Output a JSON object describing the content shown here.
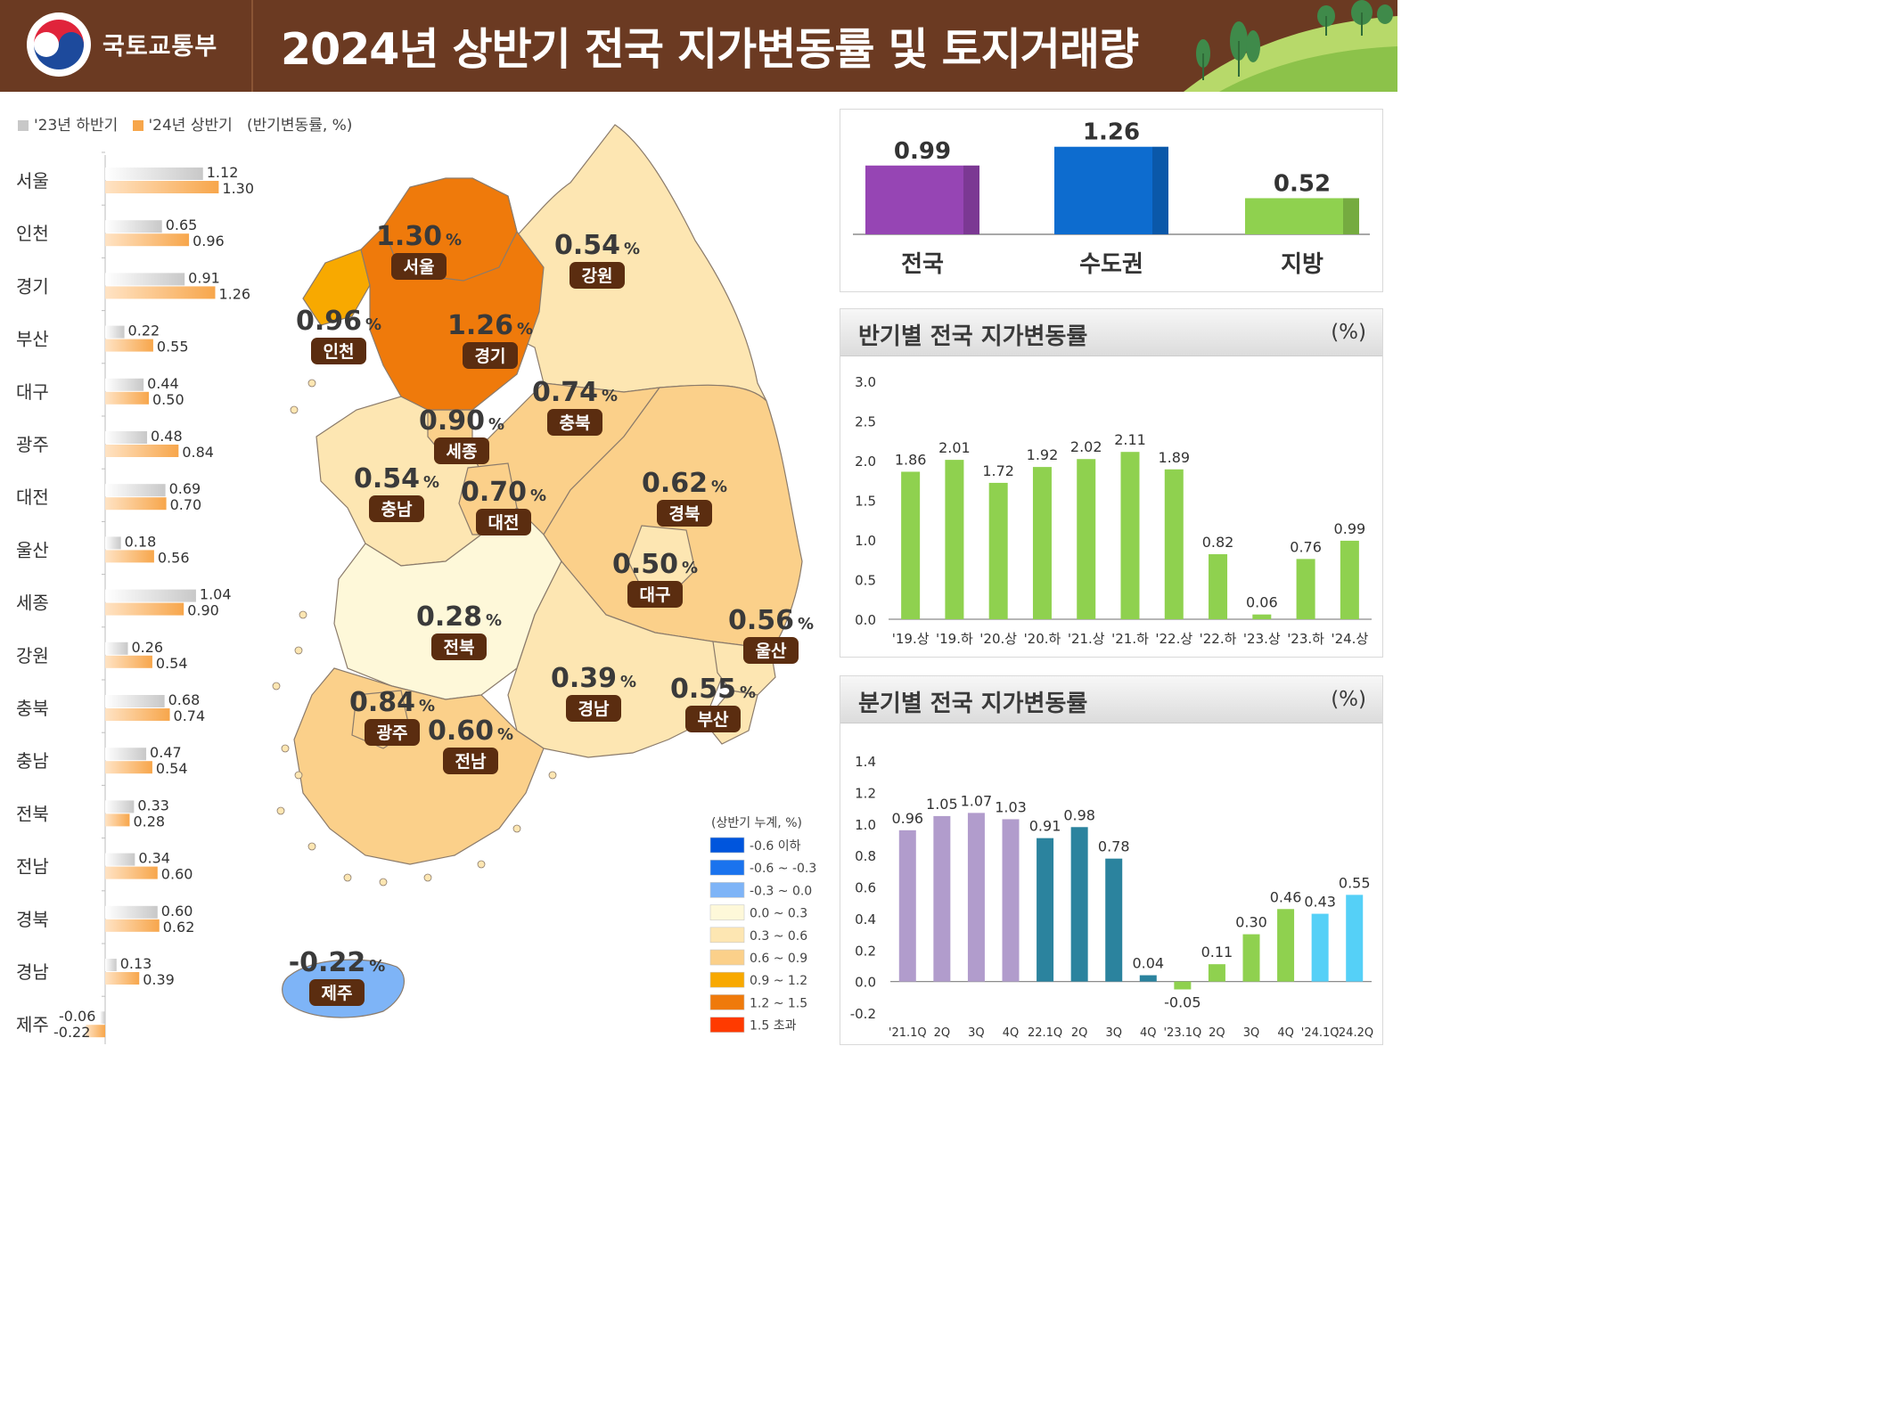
{
  "header": {
    "ministry": "국토교통부",
    "title": "2024년 상반기 전국 지가변동률 및 토지거래량"
  },
  "legend_top": {
    "prev": "'23년 하반기",
    "curr": "'24년 상반기",
    "unit": "(반기변동률, %)",
    "prev_color": "#c8c8c8",
    "curr_color": "#f7a64b"
  },
  "map": {
    "pct_sign": "%",
    "regions": [
      {
        "name": "서울",
        "value": "1.30",
        "color": "#ef7a0b"
      },
      {
        "name": "인천",
        "value": "0.96",
        "color": "#f8a900"
      },
      {
        "name": "경기",
        "value": "1.26",
        "color": "#ef7a0b"
      },
      {
        "name": "강원",
        "value": "0.54",
        "color": "#fde6b2"
      },
      {
        "name": "충북",
        "value": "0.74",
        "color": "#fbd08a"
      },
      {
        "name": "세종",
        "value": "0.90",
        "color": "#fbd08a"
      },
      {
        "name": "충남",
        "value": "0.54",
        "color": "#fde6b2"
      },
      {
        "name": "대전",
        "value": "0.70",
        "color": "#fbd08a"
      },
      {
        "name": "경북",
        "value": "0.62",
        "color": "#fbd08a"
      },
      {
        "name": "대구",
        "value": "0.50",
        "color": "#fde6b2"
      },
      {
        "name": "전북",
        "value": "0.28",
        "color": "#fef8d9"
      },
      {
        "name": "울산",
        "value": "0.56",
        "color": "#fde6b2"
      },
      {
        "name": "경남",
        "value": "0.39",
        "color": "#fde6b2"
      },
      {
        "name": "부산",
        "value": "0.55",
        "color": "#fde6b2"
      },
      {
        "name": "광주",
        "value": "0.84",
        "color": "#fbd08a"
      },
      {
        "name": "전남",
        "value": "0.60",
        "color": "#fbd08a"
      },
      {
        "name": "제주",
        "value": "-0.22",
        "color": "#7eb4f7"
      }
    ]
  },
  "map_legend": {
    "title": "(상반기 누계, %)",
    "items": [
      {
        "label": "-0.6 이하",
        "color": "#0055dd"
      },
      {
        "label": "-0.6 ~ -0.3",
        "color": "#1a73ee"
      },
      {
        "label": "-0.3 ~ 0.0",
        "color": "#7eb4f7"
      },
      {
        "label": "0.0 ~ 0.3",
        "color": "#fef8d9"
      },
      {
        "label": "0.3 ~ 0.6",
        "color": "#fde6b2"
      },
      {
        "label": "0.6 ~ 0.9",
        "color": "#fbd08a"
      },
      {
        "label": "0.9 ~ 1.2",
        "color": "#f8a900"
      },
      {
        "label": "1.2 ~ 1.5",
        "color": "#ef7a0b"
      },
      {
        "label": "1.5 초과",
        "color": "#ff3a00"
      }
    ]
  },
  "chart_data": [
    {
      "type": "bar",
      "categories": [
        "서울",
        "인천",
        "경기",
        "부산",
        "대구",
        "광주",
        "대전",
        "울산",
        "세종",
        "강원",
        "충북",
        "충남",
        "전북",
        "전남",
        "경북",
        "경남",
        "제주"
      ],
      "series": [
        {
          "name": "'23년 하반기",
          "values": [
            1.12,
            0.65,
            0.91,
            0.22,
            0.44,
            0.48,
            0.69,
            0.18,
            1.04,
            0.26,
            0.68,
            0.47,
            0.33,
            0.34,
            0.6,
            0.13,
            -0.06
          ],
          "color": "#c8c8c8"
        },
        {
          "name": "'24년 상반기",
          "values": [
            1.3,
            0.96,
            1.26,
            0.55,
            0.5,
            0.84,
            0.7,
            0.56,
            0.9,
            0.54,
            0.74,
            0.54,
            0.28,
            0.6,
            0.62,
            0.39,
            -0.22
          ],
          "color": "#f7a64b"
        }
      ],
      "labels_prev": [
        "1.12",
        "0.65",
        "0.91",
        "0.22",
        "0.44",
        "0.48",
        "0.69",
        "0.18",
        "1.04",
        "0.26",
        "0.68",
        "0.47",
        "0.33",
        "0.34",
        "0.60",
        "0.13",
        "-0.06"
      ],
      "labels_curr": [
        "1.30",
        "0.96",
        "1.26",
        "0.55",
        "0.50",
        "0.84",
        "0.70",
        "0.56",
        "0.90",
        "0.54",
        "0.74",
        "0.54",
        "0.28",
        "0.60",
        "0.62",
        "0.39",
        "-0.22"
      ],
      "title": "",
      "unit": "(반기변동률, %)"
    },
    {
      "type": "bar",
      "categories": [
        "전국",
        "수도권",
        "지방"
      ],
      "values": [
        0.99,
        1.26,
        0.52
      ],
      "value_labels": [
        "0.99",
        "1.26",
        "0.52"
      ],
      "colors": [
        "#9645b4",
        "#0d6ccf",
        "#8fd14f"
      ]
    },
    {
      "type": "bar",
      "title": "반기별 전국 지가변동률",
      "unit": "(%)",
      "categories": [
        "'19.상",
        "'19.하",
        "'20.상",
        "'20.하",
        "'21.상",
        "'21.하",
        "'22.상",
        "'22.하",
        "'23.상",
        "'23.하",
        "'24.상"
      ],
      "values": [
        1.86,
        2.01,
        1.72,
        1.92,
        2.02,
        2.11,
        1.89,
        0.82,
        0.06,
        0.76,
        0.99
      ],
      "value_labels": [
        "1.86",
        "2.01",
        "1.72",
        "1.92",
        "2.02",
        "2.11",
        "1.89",
        "0.82",
        "0.06",
        "0.76",
        "0.99"
      ],
      "ylim": [
        0,
        3.0
      ],
      "yticks": [
        "0.0",
        "0.5",
        "1.0",
        "1.5",
        "2.0",
        "2.5",
        "3.0"
      ],
      "bar_color": "#8fd14f"
    },
    {
      "type": "bar",
      "title": "분기별 전국 지가변동률",
      "unit": "(%)",
      "categories": [
        "'21.1Q",
        "2Q",
        "3Q",
        "4Q",
        "22.1Q",
        "2Q",
        "3Q",
        "4Q",
        "'23.1Q",
        "2Q",
        "3Q",
        "4Q",
        "'24.1Q",
        "'24.2Q"
      ],
      "values": [
        0.96,
        1.05,
        1.07,
        1.03,
        0.91,
        0.98,
        0.78,
        0.04,
        -0.05,
        0.11,
        0.3,
        0.46,
        0.43,
        0.55
      ],
      "value_labels": [
        "0.96",
        "1.05",
        "1.07",
        "1.03",
        "0.91",
        "0.98",
        "0.78",
        "0.04",
        "-0.05",
        "0.11",
        "0.30",
        "0.46",
        "0.43",
        "0.55"
      ],
      "colors": [
        "#b19ccc",
        "#b19ccc",
        "#b19ccc",
        "#b19ccc",
        "#2b839e",
        "#2b839e",
        "#2b839e",
        "#2b839e",
        "#8fd14f",
        "#8fd14f",
        "#8fd14f",
        "#8fd14f",
        "#55d0f7",
        "#55d0f7"
      ],
      "ylim": [
        -0.2,
        1.4
      ],
      "yticks": [
        "-0.2",
        "0.0",
        "0.2",
        "0.4",
        "0.6",
        "0.8",
        "1.0",
        "1.2",
        "1.4"
      ]
    }
  ]
}
